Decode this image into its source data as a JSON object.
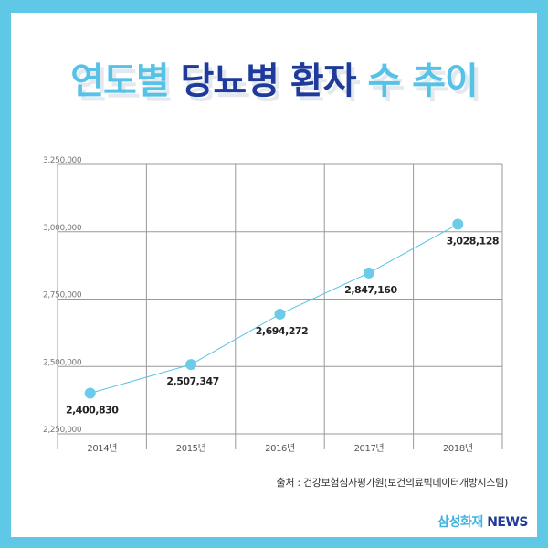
{
  "title": {
    "part1": "연도별",
    "part2": "당뇨병 환자",
    "part3": "수 추이"
  },
  "colors": {
    "accent": "#56c3e6",
    "dark": "#1f3a9a",
    "point": "#6ccbe8",
    "grid": "#999999"
  },
  "chart_data": {
    "type": "line",
    "title": "연도별 당뇨병 환자 수 추이",
    "xlabel": "",
    "ylabel": "",
    "categories": [
      "2014년",
      "2015년",
      "2016년",
      "2017년",
      "2018년"
    ],
    "series": [
      {
        "name": "당뇨병 환자 수",
        "values": [
          2400830,
          2507347,
          2694272,
          2847160,
          3028128
        ]
      }
    ],
    "value_labels": [
      "2,400,830",
      "2,507,347",
      "2,694,272",
      "2,847,160",
      "3,028,128"
    ],
    "ylim": [
      2250000,
      3250000
    ],
    "yticks": [
      2250000,
      2500000,
      2750000,
      3000000,
      3250000
    ],
    "ytick_labels": [
      "2,250,000",
      "2,500,000",
      "2,750,000",
      "3,000,000",
      "3,250,000"
    ],
    "grid": true
  },
  "source": "출처 : 건강보험심사평가원(보건의료빅데이터개방시스템)",
  "brand": {
    "part1": "삼성화재",
    "part2": "NEWS"
  }
}
